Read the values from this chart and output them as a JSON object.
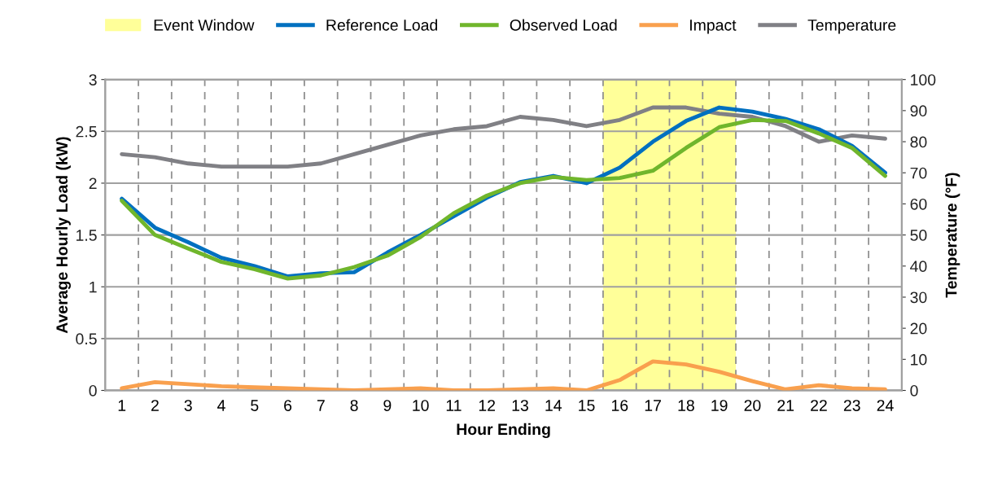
{
  "chart_data": {
    "type": "line",
    "xlabel": "Hour Ending",
    "ylabel": "Average Hourly Load (kW)",
    "y2label": "Temperature (°F)",
    "categories": [
      "1",
      "2",
      "3",
      "4",
      "5",
      "6",
      "7",
      "8",
      "9",
      "10",
      "11",
      "12",
      "13",
      "14",
      "15",
      "16",
      "17",
      "18",
      "19",
      "20",
      "21",
      "22",
      "23",
      "24"
    ],
    "series": [
      {
        "name": "Reference Load",
        "color": "#0070c0",
        "values": [
          1.85,
          1.57,
          1.43,
          1.28,
          1.2,
          1.1,
          1.13,
          1.14,
          1.33,
          1.5,
          1.68,
          1.86,
          2.01,
          2.07,
          2.0,
          2.15,
          2.4,
          2.6,
          2.73,
          2.69,
          2.62,
          2.52,
          2.36,
          2.1
        ]
      },
      {
        "name": "Observed Load",
        "color": "#70b62c",
        "values": [
          1.83,
          1.5,
          1.37,
          1.24,
          1.17,
          1.08,
          1.11,
          1.19,
          1.3,
          1.48,
          1.71,
          1.88,
          2.0,
          2.06,
          2.03,
          2.05,
          2.12,
          2.34,
          2.54,
          2.61,
          2.6,
          2.48,
          2.34,
          2.07
        ]
      },
      {
        "name": "Impact",
        "color": "#f9a04e",
        "values": [
          0.02,
          0.08,
          0.06,
          0.04,
          0.03,
          0.02,
          0.01,
          0,
          0.01,
          0.02,
          0,
          0,
          0.01,
          0.02,
          0,
          0.1,
          0.28,
          0.25,
          0.18,
          0.09,
          0.01,
          0.05,
          0.02,
          0.01
        ]
      },
      {
        "name": "Temperature",
        "color": "#808085",
        "axis": "y2",
        "values": [
          76,
          75,
          73,
          72,
          72,
          72,
          73,
          76,
          79,
          82,
          84,
          85,
          88,
          87,
          85,
          87,
          91,
          91,
          89,
          88,
          85,
          80,
          82,
          81
        ]
      }
    ],
    "bands": [
      {
        "axis": "x",
        "from": "16",
        "to": "19",
        "label": "Event Window",
        "color": "#ffff99"
      }
    ],
    "ylim": [
      0,
      3
    ],
    "yticks": [
      0,
      0.5,
      1,
      1.5,
      2,
      2.5,
      3
    ],
    "y2lim": [
      0,
      100
    ],
    "y2ticks": [
      0,
      10,
      20,
      30,
      40,
      50,
      60,
      70,
      80,
      90,
      100
    ],
    "grid": true,
    "legend": "top",
    "line_style": "solid",
    "marker": "none"
  }
}
